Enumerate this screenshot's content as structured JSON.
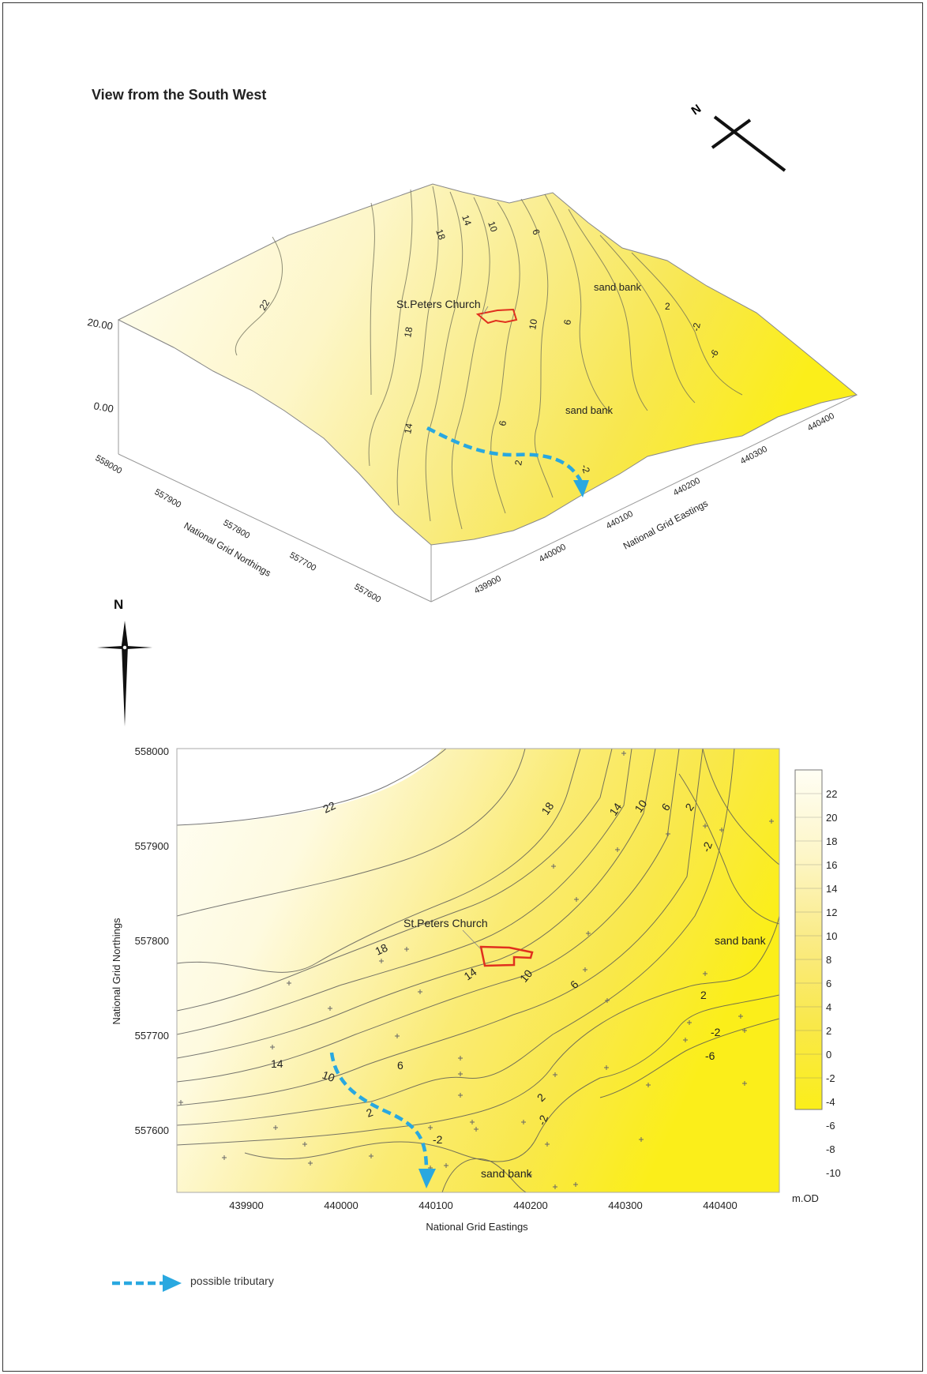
{
  "figure": {
    "view_title": "View from the South West",
    "north_label": "N",
    "legend_label": "possible tributary",
    "colors": {
      "tributary": "#29a8e0",
      "church_outline": "#e0301e",
      "ramp_low": "#fbee1a",
      "ramp_high": "#fffef2",
      "contour": "#555555"
    }
  },
  "view3d": {
    "z_axis_ticks": [
      "20.00",
      "0.00"
    ],
    "northing_ticks": [
      "558000",
      "557900",
      "557800",
      "557700",
      "557600"
    ],
    "northing_label": "National Grid Northings",
    "easting_ticks": [
      "439900",
      "440000",
      "440100",
      "440200",
      "440300",
      "440400"
    ],
    "easting_label": "National Grid Eastings",
    "church_label": "St.Peters Church",
    "feature_labels": [
      "sand bank",
      "sand bank"
    ],
    "contour_labels": [
      "22",
      "18",
      "18",
      "14",
      "14",
      "10",
      "10",
      "6",
      "6",
      "6",
      "2",
      "2",
      "-2",
      "-6",
      "-2"
    ]
  },
  "map2d": {
    "xlabel": "National Grid Eastings",
    "ylabel": "National Grid Northings",
    "x_ticks": [
      "439900",
      "440000",
      "440100",
      "440200",
      "440300",
      "440400"
    ],
    "y_ticks": [
      "558000",
      "557900",
      "557800",
      "557700",
      "557600"
    ],
    "church_label": "St.Peters Church",
    "sand_bank_labels": [
      "sand bank",
      "sand bank"
    ],
    "contour_labels": [
      "22",
      "18",
      "18",
      "14",
      "14",
      "10",
      "10",
      "6",
      "6",
      "2",
      "2",
      "-2",
      "-2",
      "-2",
      "-6",
      "2",
      "-2",
      "14",
      "10",
      "6",
      "2"
    ],
    "colorbar": {
      "unit": "m.OD",
      "ticks": [
        "22",
        "20",
        "18",
        "16",
        "14",
        "12",
        "10",
        "8",
        "6",
        "4",
        "2",
        "0",
        "-2",
        "-4",
        "-6",
        "-8",
        "-10"
      ]
    }
  }
}
